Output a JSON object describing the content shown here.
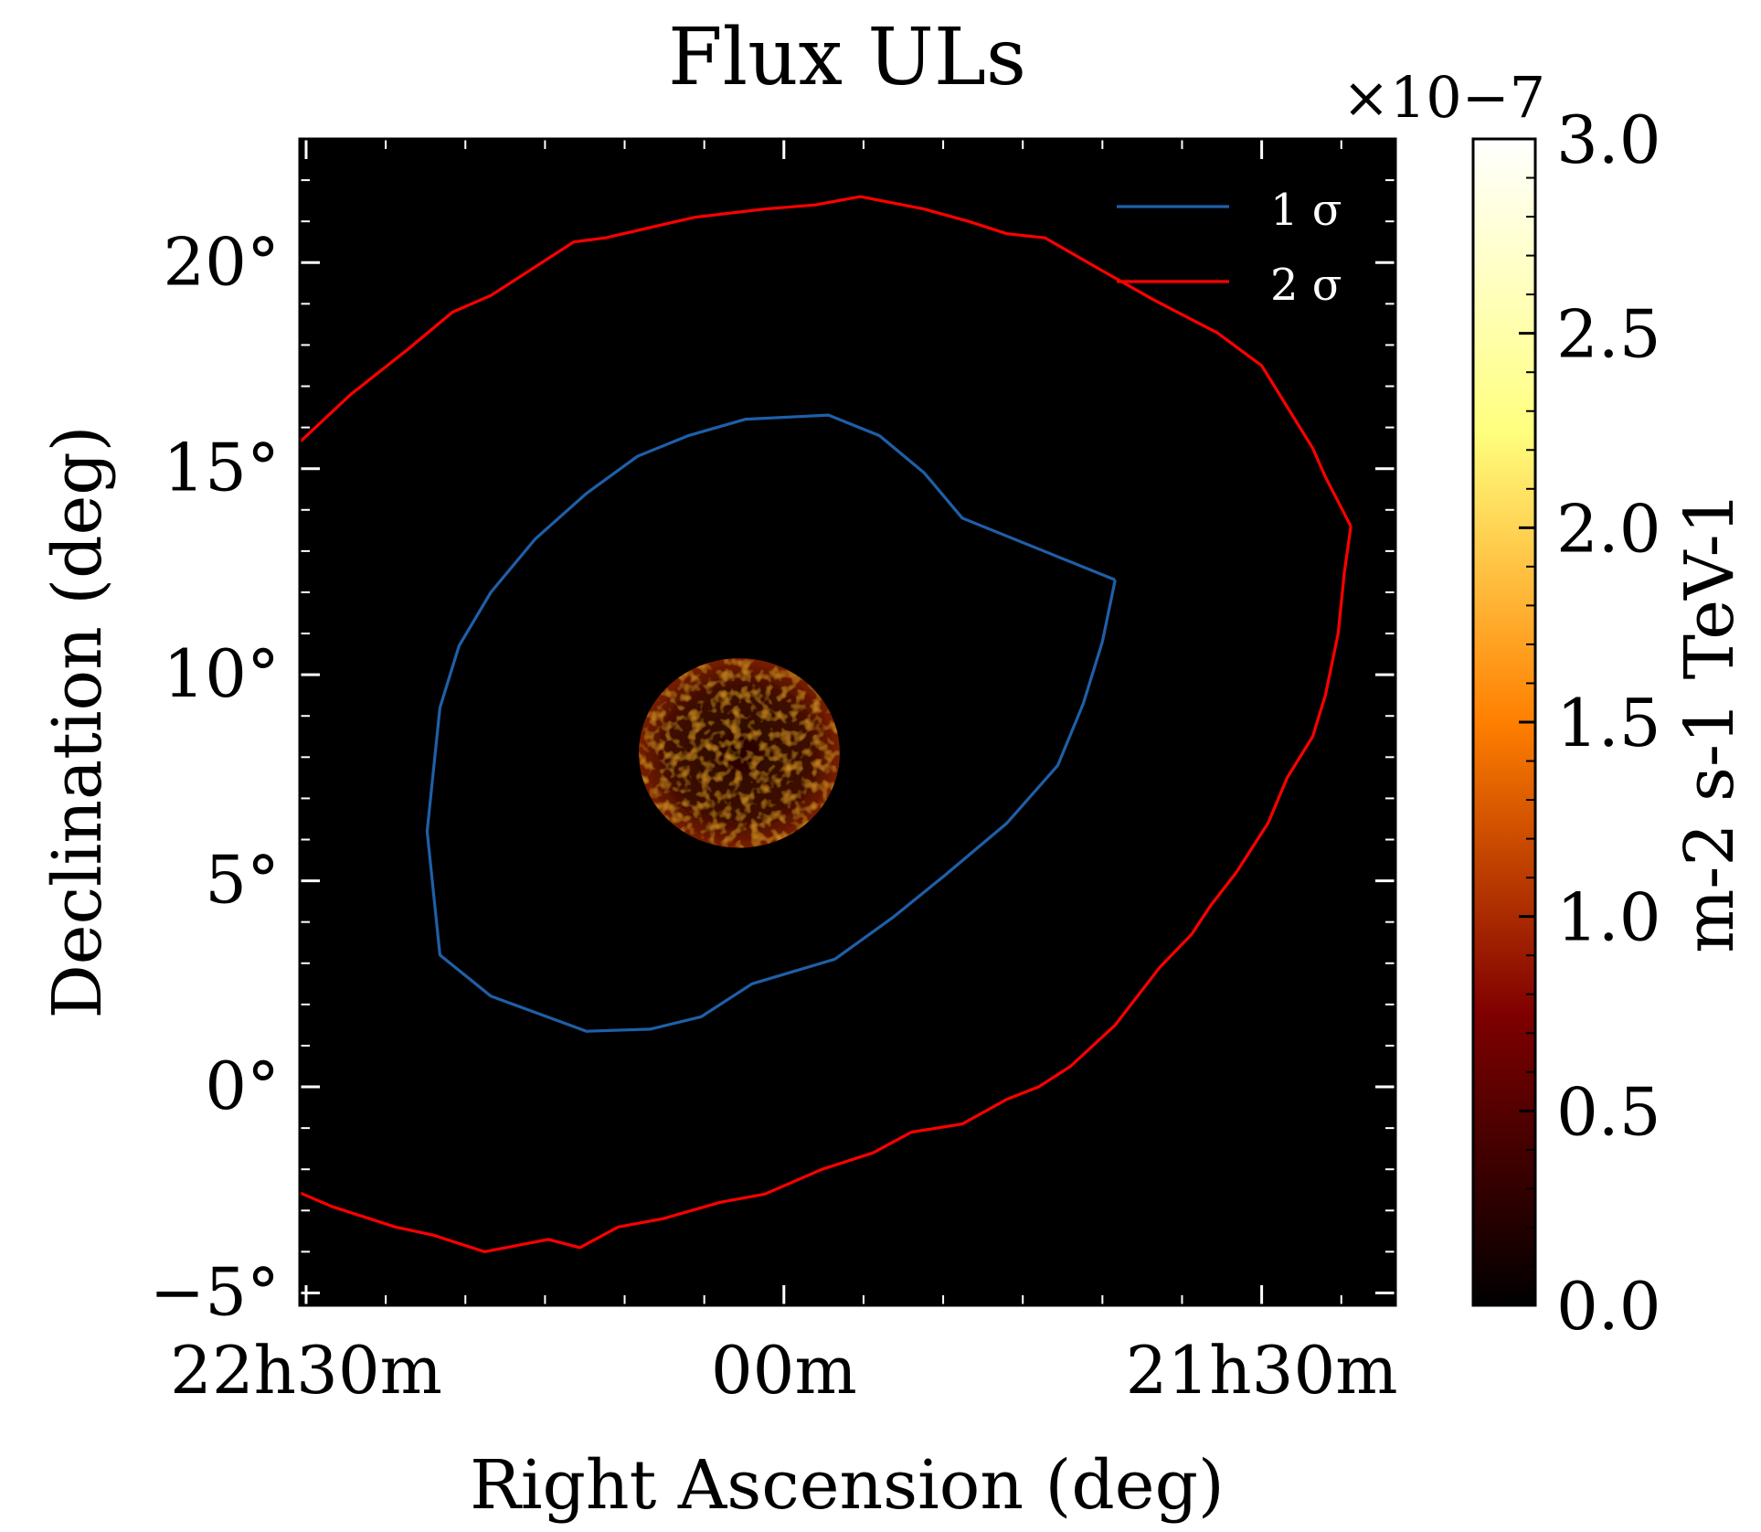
{
  "chart_data": {
    "type": "heatmap",
    "title": "Flux ULs",
    "xlabel": "Right Ascension (deg)",
    "ylabel": "Declination (deg)",
    "xlim": [
      337.6,
      320.4
    ],
    "ylim": [
      -5.3,
      23.0
    ],
    "x_ticks": [
      {
        "value": 337.5,
        "label": "22h30m"
      },
      {
        "value": 330.0,
        "label": "00m"
      },
      {
        "value": 322.5,
        "label": "21h30m"
      }
    ],
    "y_ticks": [
      {
        "value": 20,
        "label": "20°"
      },
      {
        "value": 15,
        "label": "15°"
      },
      {
        "value": 10,
        "label": "10°"
      },
      {
        "value": 5,
        "label": "5°"
      },
      {
        "value": 0,
        "label": "0°"
      },
      {
        "value": -5,
        "label": "−5°"
      }
    ],
    "grid": false,
    "colormap": "afmhot",
    "colorbar": {
      "label": "m-2 s-1 TeV-1",
      "multiplier": "×10−7",
      "range": [
        0.0,
        3.0
      ],
      "ticks": [
        "0.0",
        "0.5",
        "1.0",
        "1.5",
        "2.0",
        "2.5",
        "3.0"
      ]
    },
    "image_region": {
      "center_ra": 330.7,
      "center_dec": 8.1,
      "radius_dec_deg": 2.3,
      "typical_value": 0.3,
      "max_value": 1.6
    },
    "legend": {
      "placement": "top-right"
    },
    "series": [
      {
        "name": "1 σ",
        "color": "#1f5fa8",
        "points": [
          [
            324.8,
            12.3
          ],
          [
            325.0,
            10.8
          ],
          [
            325.3,
            9.3
          ],
          [
            325.7,
            7.8
          ],
          [
            326.5,
            6.4
          ],
          [
            327.5,
            5.1
          ],
          [
            328.3,
            4.1
          ],
          [
            329.2,
            3.1
          ],
          [
            330.5,
            2.5
          ],
          [
            331.3,
            1.7
          ],
          [
            332.1,
            1.4
          ],
          [
            333.1,
            1.35
          ],
          [
            334.6,
            2.2
          ],
          [
            335.4,
            3.2
          ],
          [
            335.6,
            6.2
          ],
          [
            335.4,
            9.2
          ],
          [
            335.1,
            10.7
          ],
          [
            334.6,
            12.0
          ],
          [
            333.9,
            13.3
          ],
          [
            333.1,
            14.4
          ],
          [
            332.3,
            15.3
          ],
          [
            331.5,
            15.8
          ],
          [
            330.6,
            16.2
          ],
          [
            329.3,
            16.3
          ],
          [
            328.5,
            15.8
          ],
          [
            327.8,
            14.9
          ],
          [
            327.2,
            13.8
          ],
          [
            324.8,
            12.3
          ]
        ]
      },
      {
        "name": "2 σ",
        "color": "#ff0000",
        "points": [
          [
            321.1,
            13.6
          ],
          [
            321.2,
            12.5
          ],
          [
            321.3,
            11.0
          ],
          [
            321.5,
            9.5
          ],
          [
            321.7,
            8.5
          ],
          [
            322.1,
            7.5
          ],
          [
            322.4,
            6.4
          ],
          [
            322.9,
            5.2
          ],
          [
            323.3,
            4.4
          ],
          [
            323.6,
            3.7
          ],
          [
            324.1,
            2.9
          ],
          [
            324.5,
            2.1
          ],
          [
            324.8,
            1.5
          ],
          [
            325.5,
            0.5
          ],
          [
            326.0,
            0.0
          ],
          [
            326.5,
            -0.3
          ],
          [
            327.2,
            -0.9
          ],
          [
            328.0,
            -1.1
          ],
          [
            328.6,
            -1.6
          ],
          [
            329.4,
            -2.0
          ],
          [
            330.3,
            -2.6
          ],
          [
            331.0,
            -2.8
          ],
          [
            331.9,
            -3.2
          ],
          [
            332.6,
            -3.4
          ],
          [
            333.2,
            -3.9
          ],
          [
            333.7,
            -3.7
          ],
          [
            334.7,
            -4.0
          ],
          [
            335.5,
            -3.6
          ],
          [
            336.1,
            -3.4
          ],
          [
            337.1,
            -2.9
          ],
          [
            337.7,
            -2.5
          ],
          [
            338.2,
            -1.5
          ],
          [
            338.5,
            -1.3
          ],
          [
            338.8,
            -0.5
          ],
          [
            339.1,
            0.4
          ],
          [
            339.5,
            1.5
          ],
          [
            339.7,
            2.9
          ],
          [
            339.9,
            4.5
          ],
          [
            340.0,
            5.5
          ],
          [
            340.2,
            6.5
          ],
          [
            340.0,
            7.6
          ],
          [
            339.9,
            8.5
          ],
          [
            340.0,
            9.5
          ],
          [
            339.7,
            10.5
          ],
          [
            339.4,
            11.5
          ],
          [
            339.2,
            12.5
          ],
          [
            338.8,
            13.7
          ],
          [
            338.3,
            14.5
          ],
          [
            337.7,
            15.5
          ],
          [
            336.8,
            16.8
          ],
          [
            335.9,
            17.9
          ],
          [
            335.2,
            18.8
          ],
          [
            334.6,
            19.2
          ],
          [
            333.9,
            19.9
          ],
          [
            333.3,
            20.5
          ],
          [
            332.8,
            20.6
          ],
          [
            331.4,
            21.1
          ],
          [
            330.3,
            21.3
          ],
          [
            329.5,
            21.4
          ],
          [
            328.8,
            21.6
          ],
          [
            327.8,
            21.3
          ],
          [
            327.1,
            21.0
          ],
          [
            326.5,
            20.7
          ],
          [
            325.9,
            20.6
          ],
          [
            325.0,
            19.8
          ],
          [
            324.2,
            19.1
          ],
          [
            323.7,
            18.7
          ],
          [
            323.2,
            18.3
          ],
          [
            322.5,
            17.5
          ],
          [
            322.1,
            16.5
          ],
          [
            321.7,
            15.5
          ],
          [
            321.5,
            14.8
          ],
          [
            321.3,
            14.2
          ],
          [
            321.1,
            13.6
          ]
        ]
      }
    ]
  }
}
